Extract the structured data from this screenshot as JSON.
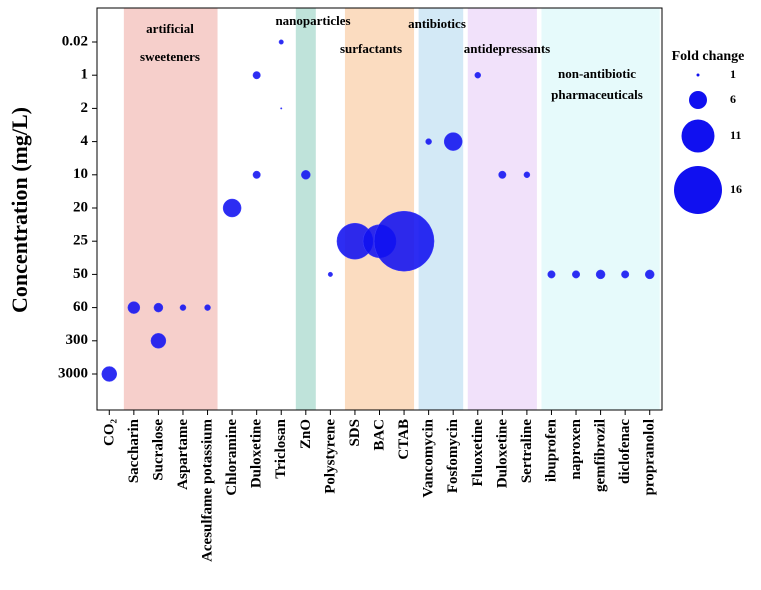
{
  "chart_data": {
    "type": "bubble",
    "ylabel": "Concentration (mg/L)",
    "categories": [
      "CO₂",
      "Saccharin",
      "Sucralose",
      "Aspartame",
      "Acesulfame potassium",
      "Chloramine",
      "Duloxetine",
      "Triclosan",
      "ZnO",
      "Polystyrene",
      "SDS",
      "BAC",
      "CTAB",
      "Vancomycin",
      "Fosfomycin",
      "Fluoxetine",
      "Duloxetine",
      "Sertraline",
      "ibuprofen",
      "naproxen",
      "gemfibrozil",
      "diclofenac",
      "propranolol"
    ],
    "yticks": [
      0.02,
      1,
      2,
      4,
      10,
      20,
      25,
      50,
      60,
      300,
      3000
    ],
    "color": "#1010f0",
    "groups": [
      {
        "label": [
          "artificial",
          "sweeteners"
        ],
        "from": 1,
        "to": 4,
        "color": "#f6cfcb"
      },
      {
        "label": [
          "nanoparticles"
        ],
        "from": 8,
        "to": 8,
        "color": "#bfe3da"
      },
      {
        "label": [
          "surfactants"
        ],
        "from": 10,
        "to": 12,
        "color": "#fbdcc0"
      },
      {
        "label": [
          "antibiotics"
        ],
        "from": 13,
        "to": 14,
        "color": "#d3e9f6"
      },
      {
        "label": [
          "antidepressants"
        ],
        "from": 15,
        "to": 17,
        "color": "#f1e1fa"
      },
      {
        "label": [
          "non-antibiotic",
          "pharmaceuticals"
        ],
        "from": 18,
        "to": 22,
        "color": "#e6fafb"
      }
    ],
    "points": [
      {
        "x": 0,
        "y": 3000,
        "fold": 5
      },
      {
        "x": 1,
        "y": 60,
        "fold": 4
      },
      {
        "x": 2,
        "y": 60,
        "fold": 3
      },
      {
        "x": 2,
        "y": 300,
        "fold": 5
      },
      {
        "x": 3,
        "y": 60,
        "fold": 2
      },
      {
        "x": 4,
        "y": 60,
        "fold": 2
      },
      {
        "x": 5,
        "y": 20,
        "fold": 6
      },
      {
        "x": 6,
        "y": 1,
        "fold": 2.5
      },
      {
        "x": 6,
        "y": 10,
        "fold": 2.5
      },
      {
        "x": 7,
        "y": 0.02,
        "fold": 1.5
      },
      {
        "x": 7,
        "y": 2,
        "fold": 0.5
      },
      {
        "x": 8,
        "y": 10,
        "fold": 3
      },
      {
        "x": 9,
        "y": 50,
        "fold": 1.5
      },
      {
        "x": 10,
        "y": 25,
        "fold": 12
      },
      {
        "x": 11,
        "y": 25,
        "fold": 11
      },
      {
        "x": 12,
        "y": 25,
        "fold": 20
      },
      {
        "x": 13,
        "y": 4,
        "fold": 2
      },
      {
        "x": 14,
        "y": 4,
        "fold": 6
      },
      {
        "x": 15,
        "y": 1,
        "fold": 2
      },
      {
        "x": 16,
        "y": 10,
        "fold": 2.5
      },
      {
        "x": 17,
        "y": 10,
        "fold": 2
      },
      {
        "x": 18,
        "y": 50,
        "fold": 2.5
      },
      {
        "x": 19,
        "y": 50,
        "fold": 2.5
      },
      {
        "x": 20,
        "y": 50,
        "fold": 3
      },
      {
        "x": 21,
        "y": 50,
        "fold": 2.5
      },
      {
        "x": 22,
        "y": 50,
        "fold": 3
      }
    ],
    "legend": {
      "title": "Fold change",
      "sizes": [
        1,
        6,
        11,
        16
      ]
    }
  }
}
